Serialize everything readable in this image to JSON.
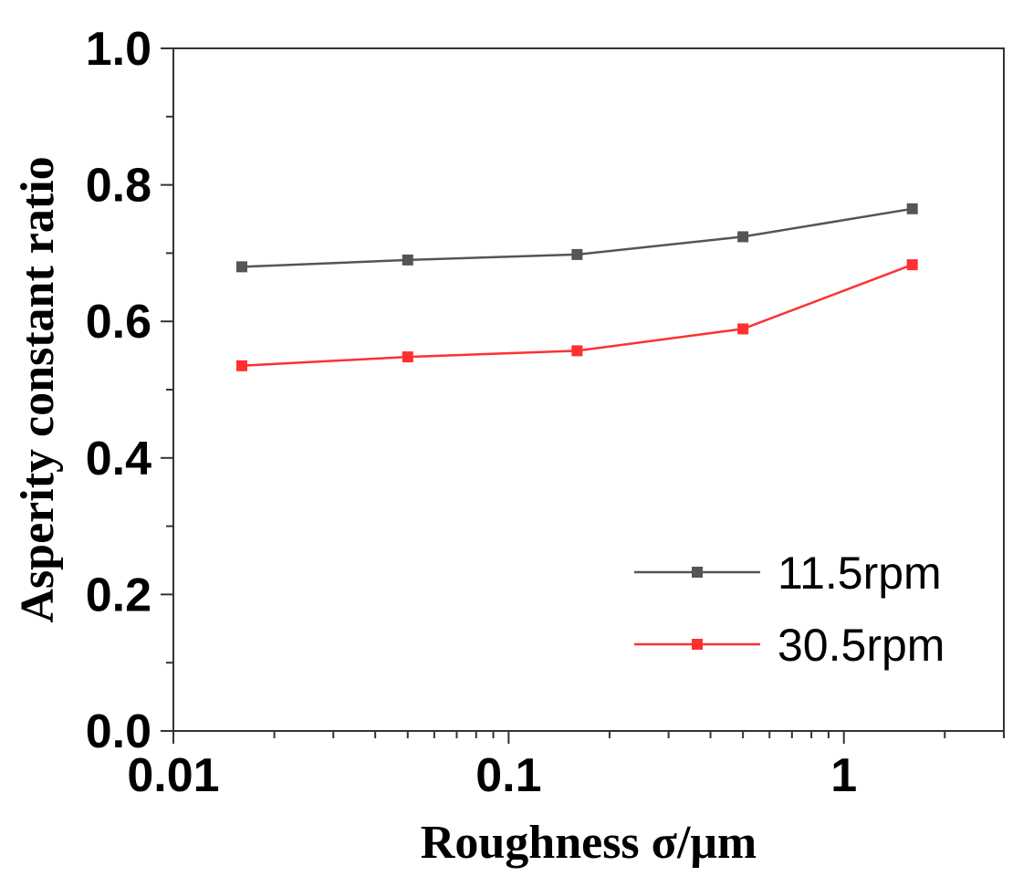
{
  "chart_data": {
    "type": "line",
    "xscale": "log",
    "xlabel": "Roughness σ/μm",
    "ylabel": "Asperity constant ratio",
    "xlim": [
      0.01,
      3.0
    ],
    "ylim": [
      0.0,
      1.0
    ],
    "xticks": [
      {
        "value": 0.01,
        "label": "0.01"
      },
      {
        "value": 0.1,
        "label": "0.1"
      },
      {
        "value": 1,
        "label": "1"
      }
    ],
    "yticks": [
      {
        "value": 0.0,
        "label": "0.0"
      },
      {
        "value": 0.2,
        "label": "0.2"
      },
      {
        "value": 0.4,
        "label": "0.4"
      },
      {
        "value": 0.6,
        "label": "0.6"
      },
      {
        "value": 0.8,
        "label": "0.8"
      },
      {
        "value": 1.0,
        "label": "1.0"
      }
    ],
    "x": [
      0.016,
      0.05,
      0.16,
      0.5,
      1.6
    ],
    "series": [
      {
        "name": "11.5rpm",
        "color": "#555555",
        "values": [
          0.68,
          0.69,
          0.698,
          0.724,
          0.765
        ]
      },
      {
        "name": "30.5rpm",
        "color": "#ff3030",
        "values": [
          0.535,
          0.548,
          0.557,
          0.589,
          0.683
        ]
      }
    ],
    "legend_position": "bottom-right",
    "grid": false
  }
}
